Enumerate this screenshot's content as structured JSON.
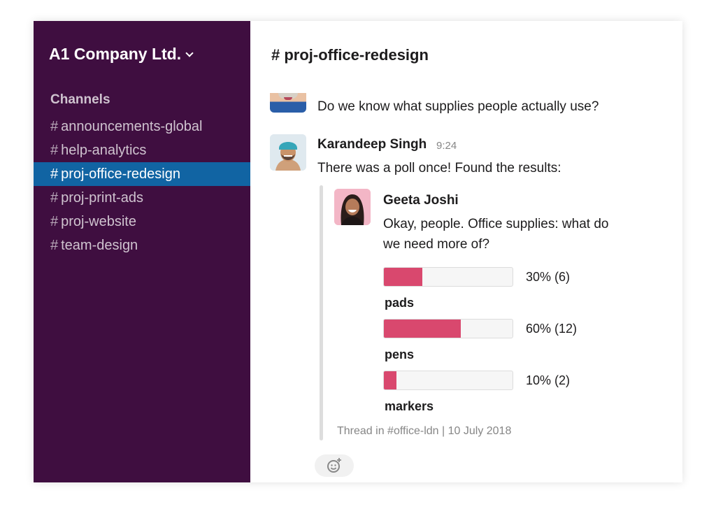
{
  "sidebar": {
    "workspace_name": "A1 Company Ltd.",
    "channels_heading": "Channels",
    "channels": [
      {
        "name": "announcements-global"
      },
      {
        "name": "help-analytics"
      },
      {
        "name": "proj-office-redesign"
      },
      {
        "name": "proj-print-ads"
      },
      {
        "name": "proj-website"
      },
      {
        "name": "team-design"
      }
    ],
    "hash": "#"
  },
  "main": {
    "channel_title": "# proj-office-redesign",
    "messages": [
      {
        "text": "Do we know what supplies people actually use?"
      },
      {
        "sender": "Karandeep Singh",
        "time": "9:24",
        "text": "There was a poll once! Found the results:"
      }
    ],
    "shared": {
      "sender": "Geeta Joshi",
      "text_line1": "Okay, people. Office supplies: what do",
      "text_line2": "we need more of?",
      "poll": [
        {
          "label": "pads",
          "percent": 30,
          "result": "30% (6)"
        },
        {
          "label": "pens",
          "percent": 60,
          "result": "60% (12)"
        },
        {
          "label": "markers",
          "percent": 10,
          "result": "10% (2)"
        }
      ],
      "footer": "Thread in #office-ldn | 10 July 2018"
    }
  },
  "colors": {
    "sidebar_bg": "#3f0e40",
    "active_channel": "#1164a3",
    "poll_fill": "#d9486e"
  },
  "icons": {
    "workspace_chevron": "chevron-down-icon",
    "reaction": "add-reaction-icon"
  }
}
